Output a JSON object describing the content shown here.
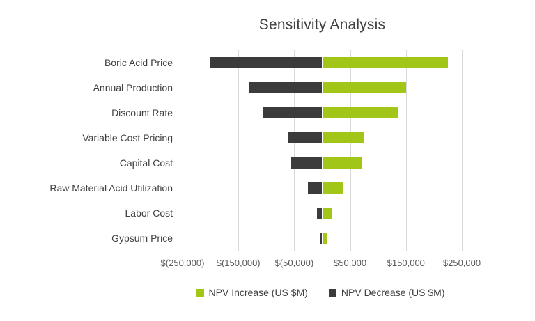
{
  "chart_data": {
    "type": "bar",
    "orientation": "horizontal",
    "title": "Sensitivity Analysis",
    "categories": [
      "Boric Acid Price",
      "Annual Production",
      "Discount Rate",
      "Variable Cost Pricing",
      "Capital Cost",
      "Raw Material Acid Utilization",
      "Labor Cost",
      "Gypsum Price"
    ],
    "series": [
      {
        "name": "NPV Increase (US $M)",
        "color": "#a2c617",
        "values": [
          225000,
          150000,
          135000,
          75000,
          70000,
          38000,
          18000,
          9000
        ]
      },
      {
        "name": "NPV Decrease (US $M)",
        "color": "#3b3b3b",
        "values": [
          -200000,
          -130000,
          -105000,
          -60000,
          -55000,
          -25000,
          -9000,
          -4000
        ]
      }
    ],
    "xlim": [
      -250000,
      250000
    ],
    "x_ticks": [
      {
        "value": -250000,
        "label": "$(250,000)"
      },
      {
        "value": -150000,
        "label": "$(150,000)"
      },
      {
        "value": -50000,
        "label": "$(50,000)"
      },
      {
        "value": 50000,
        "label": "$50,000"
      },
      {
        "value": 150000,
        "label": "$150,000"
      },
      {
        "value": 250000,
        "label": "$250,000"
      }
    ],
    "grid": true,
    "legend_position": "bottom",
    "colors": {
      "gridline": "#d9d9d9",
      "title_text": "#404040",
      "axis_text": "#595959"
    }
  }
}
